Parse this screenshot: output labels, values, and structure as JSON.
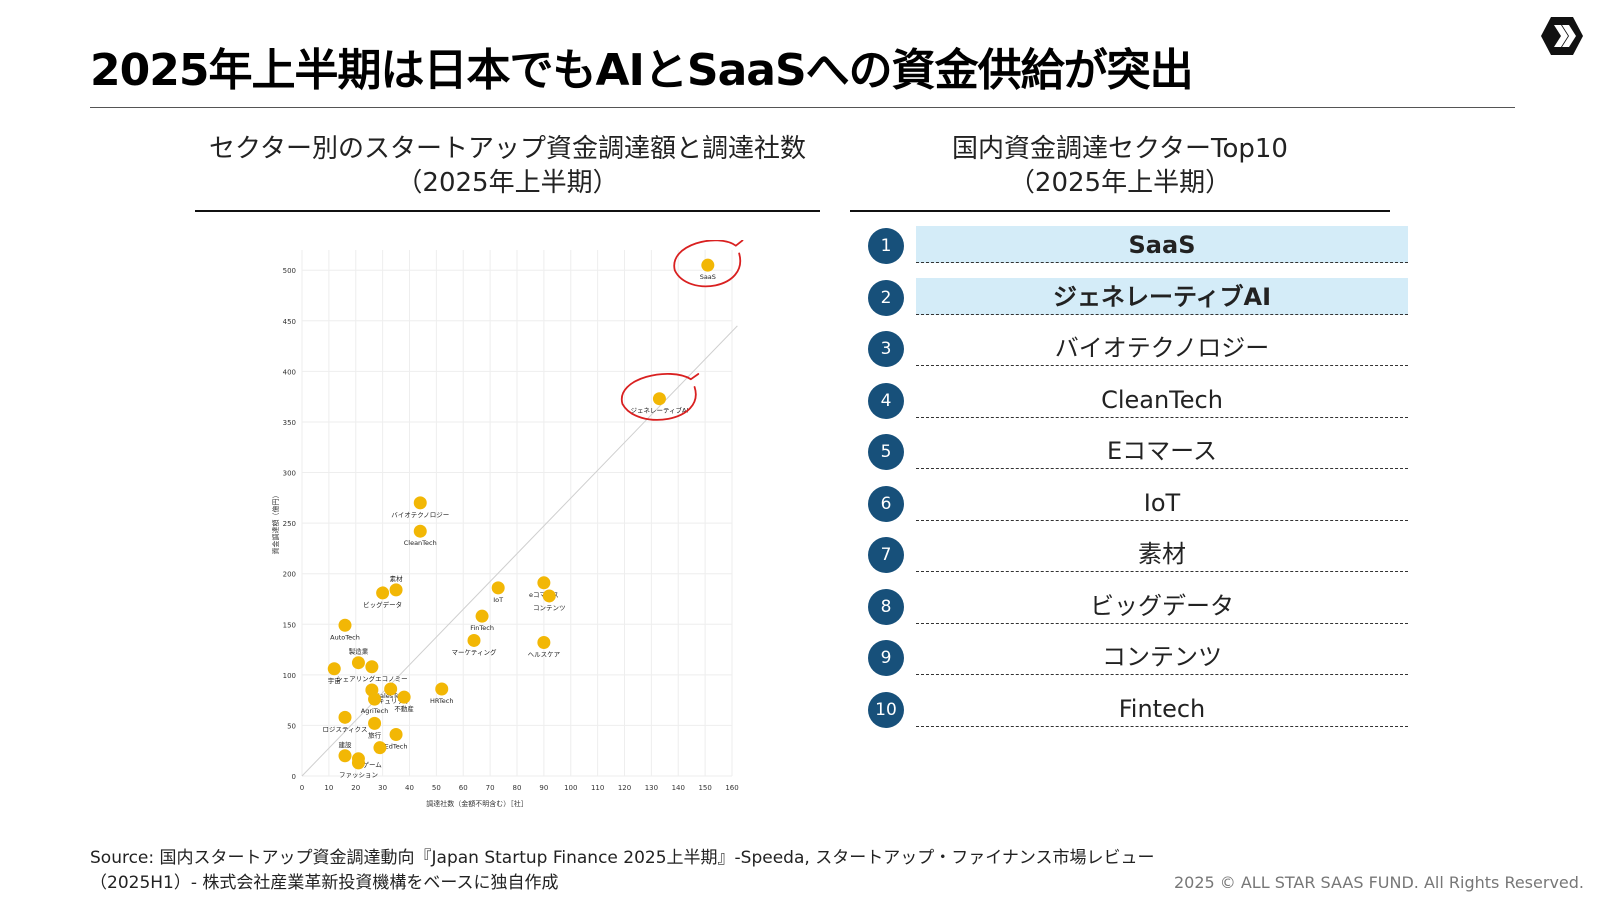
{
  "title": "2025年上半期は日本でもAIとSaaSへの資金供給が突出",
  "left_panel": {
    "title_line1": "セクター別のスタートアップ資金調達額と調達社数",
    "title_line2": "（2025年上半期）"
  },
  "right_panel": {
    "title_line1": "国内資金調達セクターTop10",
    "title_line2": "（2025年上半期）",
    "ranks": [
      {
        "rank": "1",
        "label": "SaaS",
        "highlight": true
      },
      {
        "rank": "2",
        "label": "ジェネレーティブAI",
        "highlight": true
      },
      {
        "rank": "3",
        "label": "バイオテクノロジー",
        "highlight": false
      },
      {
        "rank": "4",
        "label": "CleanTech",
        "highlight": false
      },
      {
        "rank": "5",
        "label": "Eコマース",
        "highlight": false
      },
      {
        "rank": "6",
        "label": "IoT",
        "highlight": false
      },
      {
        "rank": "7",
        "label": "素材",
        "highlight": false
      },
      {
        "rank": "8",
        "label": "ビッグデータ",
        "highlight": false
      },
      {
        "rank": "9",
        "label": "コンテンツ",
        "highlight": false
      },
      {
        "rank": "10",
        "label": "Fintech",
        "highlight": false
      }
    ]
  },
  "chart_data": {
    "type": "scatter",
    "title": "セクター別のスタートアップ資金調達額と調達社数（2025年上半期）",
    "xlabel": "調達社数（金額不明含む）［社］",
    "ylabel": "資金調達額（億円）",
    "xlim": [
      0,
      160
    ],
    "ylim": [
      0,
      520
    ],
    "xticks": [
      0,
      10,
      20,
      30,
      40,
      50,
      60,
      70,
      80,
      90,
      100,
      110,
      120,
      130,
      140,
      150,
      160
    ],
    "yticks": [
      0,
      50,
      100,
      150,
      200,
      250,
      300,
      350,
      400,
      450,
      500
    ],
    "trend_line": [
      [
        0,
        0
      ],
      [
        162,
        445
      ]
    ],
    "point_color": "#f2b705",
    "circle_color": "#d92020",
    "points": [
      {
        "label": "SaaS",
        "x": 151,
        "y": 505,
        "circled": true,
        "label_pos": "below"
      },
      {
        "label": "ジェネレーティブAI",
        "x": 133,
        "y": 373,
        "circled": true,
        "label_pos": "below"
      },
      {
        "label": "バイオテクノロジー",
        "x": 44,
        "y": 270,
        "circled": false,
        "label_pos": "below"
      },
      {
        "label": "CleanTech",
        "x": 44,
        "y": 242,
        "circled": false,
        "label_pos": "below"
      },
      {
        "label": "素材",
        "x": 35,
        "y": 184,
        "circled": false,
        "label_pos": "above"
      },
      {
        "label": "ビッグデータ",
        "x": 30,
        "y": 181,
        "circled": false,
        "label_pos": "below"
      },
      {
        "label": "IoT",
        "x": 73,
        "y": 186,
        "circled": false,
        "label_pos": "below"
      },
      {
        "label": "eコマース",
        "x": 90,
        "y": 191,
        "circled": false,
        "label_pos": "below"
      },
      {
        "label": "コンテンツ",
        "x": 92,
        "y": 178,
        "circled": false,
        "label_pos": "below"
      },
      {
        "label": "FinTech",
        "x": 67,
        "y": 158,
        "circled": false,
        "label_pos": "below"
      },
      {
        "label": "マーケティング",
        "x": 64,
        "y": 134,
        "circled": false,
        "label_pos": "below"
      },
      {
        "label": "ヘルスケア",
        "x": 90,
        "y": 132,
        "circled": false,
        "label_pos": "below"
      },
      {
        "label": "AutoTech",
        "x": 16,
        "y": 149,
        "circled": false,
        "label_pos": "below"
      },
      {
        "label": "製造業",
        "x": 21,
        "y": 112,
        "circled": false,
        "label_pos": "above"
      },
      {
        "label": "シェアリングエコノミー",
        "x": 26,
        "y": 108,
        "circled": false,
        "label_pos": "below"
      },
      {
        "label": "宇宙",
        "x": 12,
        "y": 106,
        "circled": false,
        "label_pos": "below"
      },
      {
        "label": "SalesTech",
        "x": 26,
        "y": 85,
        "circled": false,
        "label_pos": "right"
      },
      {
        "label": "セキュリティ",
        "x": 33,
        "y": 86,
        "circled": false,
        "label_pos": "below"
      },
      {
        "label": "AgriTech",
        "x": 27,
        "y": 76,
        "circled": false,
        "label_pos": "below"
      },
      {
        "label": "不動産",
        "x": 38,
        "y": 78,
        "circled": false,
        "label_pos": "below"
      },
      {
        "label": "HRTech",
        "x": 52,
        "y": 86,
        "circled": false,
        "label_pos": "below"
      },
      {
        "label": "ロジスティクス",
        "x": 16,
        "y": 58,
        "circled": false,
        "label_pos": "below"
      },
      {
        "label": "旅行",
        "x": 27,
        "y": 52,
        "circled": false,
        "label_pos": "below"
      },
      {
        "label": "EdTech",
        "x": 35,
        "y": 41,
        "circled": false,
        "label_pos": "below"
      },
      {
        "label": "建設",
        "x": 16,
        "y": 20,
        "circled": false,
        "label_pos": "above"
      },
      {
        "label": "ゲーム",
        "x": 21,
        "y": 17,
        "circled": false,
        "label_pos": "right"
      },
      {
        "label": "ファッション",
        "x": 29,
        "y": 28,
        "circled": false,
        "label_pos": "none"
      },
      {
        "label": "ファッション",
        "x": 21,
        "y": 13,
        "circled": false,
        "label_pos": "below"
      }
    ]
  },
  "source_line1": "Source: 国内スタートアップ資金調達動向『Japan Startup Finance 2025上半期』-Speeda, スタートアップ・ファイナンス市場レビュー",
  "source_line2": "（2025H1）- 株式会社産業革新投資機構をベースに独自作成",
  "copyright": "2025 © ALL STAR SAAS FUND. All Rights Reserved."
}
